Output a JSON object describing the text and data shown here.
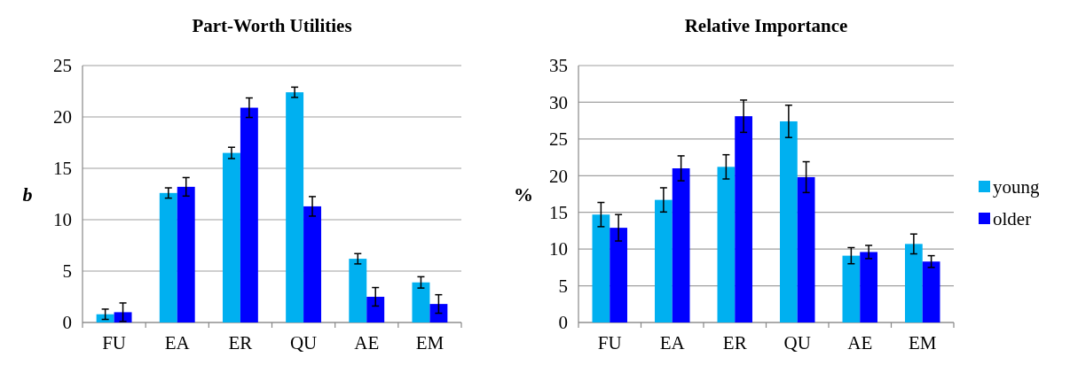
{
  "chart_data": [
    {
      "type": "bar",
      "title": "Part-Worth Utilities",
      "ylabel": "b",
      "categories": [
        "FU",
        "EA",
        "ER",
        "QU",
        "AE",
        "EM"
      ],
      "ylim": [
        0,
        25
      ],
      "yticks": [
        0,
        5,
        10,
        15,
        20,
        25
      ],
      "grid": "y",
      "series": [
        {
          "color": "#00b0f0",
          "values": [
            0.8,
            12.6,
            16.5,
            22.4,
            6.2,
            3.9
          ],
          "errors": [
            0.5,
            0.5,
            0.55,
            0.5,
            0.5,
            0.55
          ]
        },
        {
          "color": "#0000ff",
          "values": [
            1.0,
            13.2,
            20.9,
            11.3,
            2.5,
            1.8
          ],
          "errors": [
            0.9,
            0.9,
            0.95,
            0.95,
            0.9,
            0.9
          ]
        }
      ]
    },
    {
      "type": "bar",
      "title": "Relative Importance",
      "ylabel": "%",
      "categories": [
        "FU",
        "EA",
        "ER",
        "QU",
        "AE",
        "EM"
      ],
      "ylim": [
        0,
        35
      ],
      "yticks": [
        0,
        5,
        10,
        15,
        20,
        25,
        30,
        35
      ],
      "grid": "y",
      "legend": "right",
      "series": [
        {
          "name": "young",
          "color": "#00b0f0",
          "values": [
            14.7,
            16.7,
            21.2,
            27.4,
            9.1,
            10.7
          ],
          "errors": [
            1.65,
            1.65,
            1.65,
            2.2,
            1.1,
            1.35
          ]
        },
        {
          "name": "older",
          "color": "#0000ff",
          "values": [
            12.9,
            21.0,
            28.1,
            19.8,
            9.6,
            8.3
          ],
          "errors": [
            1.8,
            1.7,
            2.2,
            2.1,
            0.9,
            0.8
          ]
        }
      ]
    }
  ]
}
